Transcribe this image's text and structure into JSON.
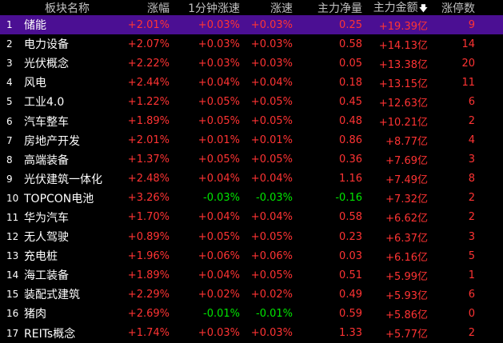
{
  "header": {
    "name": "板块名称",
    "pct": "涨幅",
    "one_min": "1分钟涨速",
    "speed": "涨速",
    "net": "主力净量",
    "amount": "主力金额",
    "limit_up": "涨停数",
    "sort_icon": "arrow-down-icon"
  },
  "colors": {
    "up": "#ff3333",
    "down": "#00e600",
    "selected_row": "#4b0f93"
  },
  "rows": [
    {
      "idx": "1",
      "name": "储能",
      "pct": "+2.01%",
      "one_min": "+0.03%",
      "speed": "+0.03%",
      "net": "0.25",
      "amount": "+19.39亿",
      "limit_up": "9"
    },
    {
      "idx": "2",
      "name": "电力设备",
      "pct": "+2.07%",
      "one_min": "+0.03%",
      "speed": "+0.03%",
      "net": "0.58",
      "amount": "+14.13亿",
      "limit_up": "14"
    },
    {
      "idx": "3",
      "name": "光伏概念",
      "pct": "+2.22%",
      "one_min": "+0.03%",
      "speed": "+0.03%",
      "net": "0.05",
      "amount": "+13.38亿",
      "limit_up": "20"
    },
    {
      "idx": "4",
      "name": "风电",
      "pct": "+2.44%",
      "one_min": "+0.04%",
      "speed": "+0.04%",
      "net": "0.18",
      "amount": "+13.15亿",
      "limit_up": "11"
    },
    {
      "idx": "5",
      "name": "工业4.0",
      "pct": "+1.22%",
      "one_min": "+0.05%",
      "speed": "+0.05%",
      "net": "0.45",
      "amount": "+12.63亿",
      "limit_up": "6"
    },
    {
      "idx": "6",
      "name": "汽车整车",
      "pct": "+1.89%",
      "one_min": "+0.05%",
      "speed": "+0.05%",
      "net": "0.48",
      "amount": "+10.21亿",
      "limit_up": "2"
    },
    {
      "idx": "7",
      "name": "房地产开发",
      "pct": "+2.01%",
      "one_min": "+0.01%",
      "speed": "+0.01%",
      "net": "0.86",
      "amount": "+8.77亿",
      "limit_up": "4"
    },
    {
      "idx": "8",
      "name": "高端装备",
      "pct": "+1.37%",
      "one_min": "+0.05%",
      "speed": "+0.05%",
      "net": "0.36",
      "amount": "+7.69亿",
      "limit_up": "3"
    },
    {
      "idx": "9",
      "name": "光伏建筑一体化",
      "pct": "+2.48%",
      "one_min": "+0.04%",
      "speed": "+0.04%",
      "net": "1.16",
      "amount": "+7.49亿",
      "limit_up": "8"
    },
    {
      "idx": "10",
      "name": "TOPCON电池",
      "pct": "+3.26%",
      "one_min": "-0.03%",
      "speed": "-0.03%",
      "net": "-0.16",
      "amount": "+7.32亿",
      "limit_up": "2"
    },
    {
      "idx": "11",
      "name": "华为汽车",
      "pct": "+1.70%",
      "one_min": "+0.04%",
      "speed": "+0.04%",
      "net": "0.58",
      "amount": "+6.62亿",
      "limit_up": "2"
    },
    {
      "idx": "12",
      "name": "无人驾驶",
      "pct": "+0.89%",
      "one_min": "+0.05%",
      "speed": "+0.05%",
      "net": "0.23",
      "amount": "+6.37亿",
      "limit_up": "3"
    },
    {
      "idx": "13",
      "name": "充电桩",
      "pct": "+1.96%",
      "one_min": "+0.06%",
      "speed": "+0.06%",
      "net": "0.03",
      "amount": "+6.16亿",
      "limit_up": "5"
    },
    {
      "idx": "14",
      "name": "海工装备",
      "pct": "+1.89%",
      "one_min": "+0.04%",
      "speed": "+0.05%",
      "net": "0.51",
      "amount": "+5.99亿",
      "limit_up": "1"
    },
    {
      "idx": "15",
      "name": "装配式建筑",
      "pct": "+2.29%",
      "one_min": "+0.02%",
      "speed": "+0.02%",
      "net": "0.49",
      "amount": "+5.93亿",
      "limit_up": "6"
    },
    {
      "idx": "16",
      "name": "猪肉",
      "pct": "+2.69%",
      "one_min": "-0.01%",
      "speed": "-0.01%",
      "net": "0.59",
      "amount": "+5.86亿",
      "limit_up": "0"
    },
    {
      "idx": "17",
      "name": "REITs概念",
      "pct": "+1.74%",
      "one_min": "+0.03%",
      "speed": "+0.03%",
      "net": "1.33",
      "amount": "+5.77亿",
      "limit_up": "2"
    }
  ]
}
